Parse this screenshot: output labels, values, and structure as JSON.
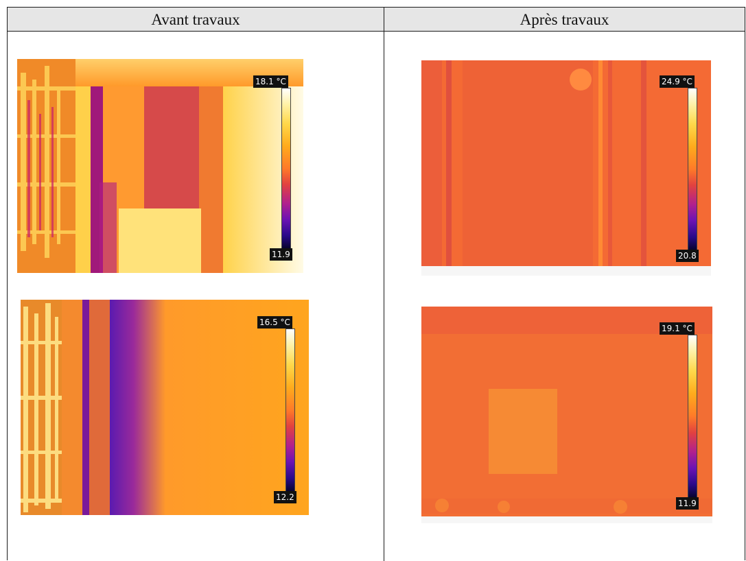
{
  "table": {
    "headers": [
      "Avant travaux",
      "Après travaux"
    ]
  },
  "images": {
    "before_top": {
      "max": "18.1 °C",
      "min": "11.9"
    },
    "before_bottom": {
      "max": "16.5 °C",
      "min": "12.2"
    },
    "after_top": {
      "max": "24.9 °C",
      "min": "20.8"
    },
    "after_bottom": {
      "max": "19.1 °C",
      "min": "11.9"
    }
  },
  "colors": {
    "header_bg": "#e6e6e6",
    "border": "#1a1a1a",
    "palette": "inferno"
  }
}
